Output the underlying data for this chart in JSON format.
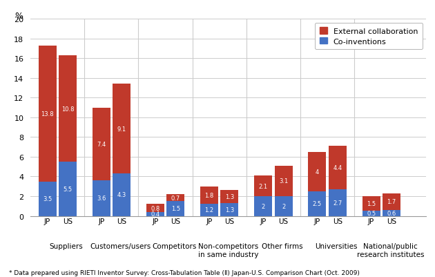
{
  "categories": [
    "Suppliers",
    "Customers/users",
    "Competitors",
    "Non-competitors\nin same industry",
    "Other firms",
    "Universities",
    "National/public\nresearch institutes"
  ],
  "jp_coinventions": [
    3.5,
    3.6,
    0.4,
    1.2,
    2.0,
    2.5,
    0.5
  ],
  "jp_external": [
    13.8,
    7.4,
    0.8,
    1.8,
    2.1,
    4.0,
    1.5
  ],
  "us_coinventions": [
    5.5,
    4.3,
    1.5,
    1.3,
    2.0,
    2.7,
    0.6
  ],
  "us_external": [
    10.8,
    9.1,
    0.7,
    1.3,
    3.1,
    4.4,
    1.7
  ],
  "color_external": "#C0392B",
  "color_coinventions": "#4472C4",
  "ylabel": "%",
  "ylim": [
    0,
    20
  ],
  "yticks": [
    0,
    2,
    4,
    6,
    8,
    10,
    12,
    14,
    16,
    18,
    20
  ],
  "legend_external": "External collaboration",
  "legend_coinventions": "Co-inventions",
  "footnote": "* Data prepared using RIETI Inventor Survey: Cross-Tabulation Table (Ⅱ) Japan-U.S. Comparison Chart (Oct. 2009)"
}
